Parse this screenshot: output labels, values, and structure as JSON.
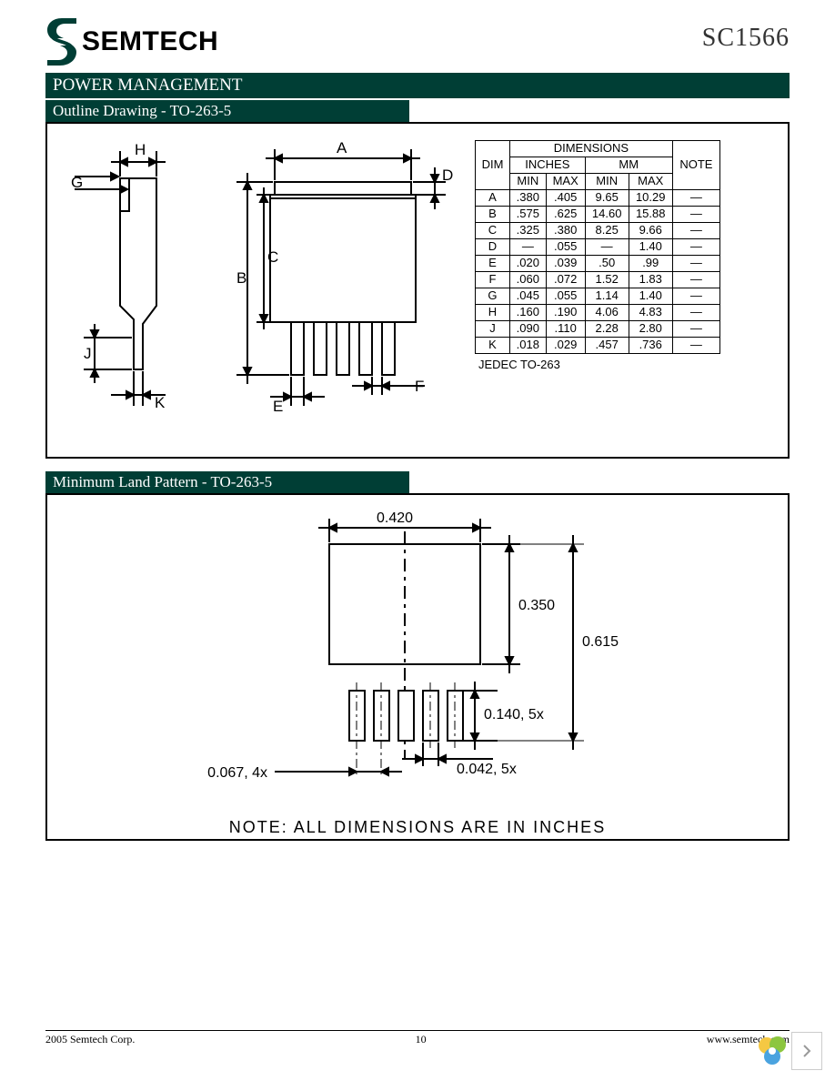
{
  "header": {
    "company": "SEMTECH",
    "part_number": "SC1566",
    "logo_color": "#003e35"
  },
  "section_title": "POWER MANAGEMENT",
  "section_bg": "#003e35",
  "outline": {
    "title": "Outline Drawing - TO-263-5",
    "side_labels": {
      "G": "G",
      "H": "H",
      "J": "J",
      "K": "K"
    },
    "top_labels": {
      "A": "A",
      "B": "B",
      "C": "C",
      "D": "D",
      "E": "E",
      "F": "F"
    },
    "table": {
      "header_top": "DIMENSIONS",
      "header_dim": "DIM",
      "header_inches": "INCHES",
      "header_mm": "MM",
      "header_note": "NOTE",
      "header_min": "MIN",
      "header_max": "MAX",
      "rows": [
        {
          "dim": "A",
          "imin": ".380",
          "imax": ".405",
          "mmin": "9.65",
          "mmax": "10.29",
          "note": "—"
        },
        {
          "dim": "B",
          "imin": ".575",
          "imax": ".625",
          "mmin": "14.60",
          "mmax": "15.88",
          "note": "—"
        },
        {
          "dim": "C",
          "imin": ".325",
          "imax": ".380",
          "mmin": "8.25",
          "mmax": "9.66",
          "note": "—"
        },
        {
          "dim": "D",
          "imin": "—",
          "imax": ".055",
          "mmin": "—",
          "mmax": "1.40",
          "note": "—"
        },
        {
          "dim": "E",
          "imin": ".020",
          "imax": ".039",
          "mmin": ".50",
          "mmax": ".99",
          "note": "—"
        },
        {
          "dim": "F",
          "imin": ".060",
          "imax": ".072",
          "mmin": "1.52",
          "mmax": "1.83",
          "note": "—"
        },
        {
          "dim": "G",
          "imin": ".045",
          "imax": ".055",
          "mmin": "1.14",
          "mmax": "1.40",
          "note": "—"
        },
        {
          "dim": "H",
          "imin": ".160",
          "imax": ".190",
          "mmin": "4.06",
          "mmax": "4.83",
          "note": "—"
        },
        {
          "dim": "J",
          "imin": ".090",
          "imax": ".110",
          "mmin": "2.28",
          "mmax": "2.80",
          "note": "—"
        },
        {
          "dim": "K",
          "imin": ".018",
          "imax": ".029",
          "mmin": ".457",
          "mmax": ".736",
          "note": "—"
        }
      ],
      "jedec": "JEDEC TO-263"
    }
  },
  "landpattern": {
    "title": "Minimum Land Pattern - TO-263-5",
    "dims": {
      "width": "0.420",
      "pad_h": "0.350",
      "total_h": "0.615",
      "pin_h": "0.140, 5x",
      "pin_w": "0.042, 5x",
      "pitch": "0.067, 4x"
    },
    "note": "NOTE:  ALL DIMENSIONS ARE IN INCHES"
  },
  "footer": {
    "copyright": "  2005 Semtech Corp.",
    "page": "10",
    "url": "www.semtech.com"
  },
  "colors": {
    "line": "#000000",
    "bg": "#ffffff"
  }
}
